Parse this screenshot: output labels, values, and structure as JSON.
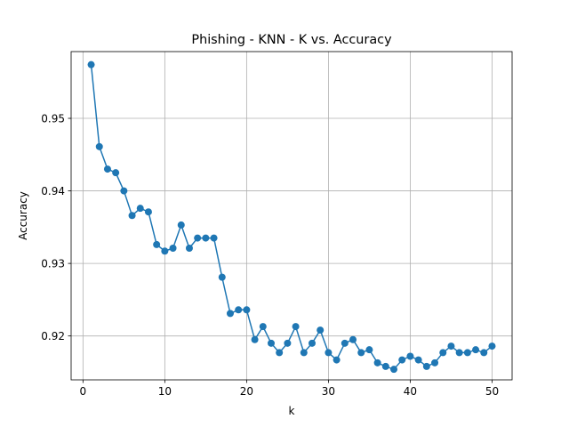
{
  "chart_data": {
    "type": "line",
    "title": "Phishing - KNN - K vs. Accuracy",
    "xlabel": "k",
    "ylabel": "Accuracy",
    "xlim": [
      -1.45,
      52.45
    ],
    "ylim": [
      0.91395,
      0.9592
    ],
    "xticks": [
      0,
      10,
      20,
      30,
      40,
      50
    ],
    "yticks": [
      0.92,
      0.93,
      0.94,
      0.95
    ],
    "xtick_labels": [
      "0",
      "10",
      "20",
      "30",
      "40",
      "50"
    ],
    "ytick_labels": [
      "0.92",
      "0.93",
      "0.94",
      "0.95"
    ],
    "grid": true,
    "marker": "circle",
    "series": [
      {
        "color": "#1f77b4",
        "x": [
          1,
          2,
          3,
          4,
          5,
          6,
          7,
          8,
          9,
          10,
          11,
          12,
          13,
          14,
          15,
          16,
          17,
          18,
          19,
          20,
          21,
          22,
          23,
          24,
          25,
          26,
          27,
          28,
          29,
          30,
          31,
          32,
          33,
          34,
          35,
          36,
          37,
          38,
          39,
          40,
          41,
          42,
          43,
          44,
          45,
          46,
          47,
          48,
          49,
          50
        ],
        "y": [
          0.9574,
          0.9461,
          0.943,
          0.9425,
          0.94,
          0.9366,
          0.9376,
          0.9371,
          0.9326,
          0.9317,
          0.9321,
          0.9353,
          0.9321,
          0.9335,
          0.9335,
          0.9335,
          0.9281,
          0.9231,
          0.9236,
          0.9236,
          0.9195,
          0.9213,
          0.919,
          0.9177,
          0.919,
          0.9213,
          0.9177,
          0.919,
          0.9208,
          0.9177,
          0.9167,
          0.919,
          0.9195,
          0.9177,
          0.9181,
          0.9163,
          0.9158,
          0.9154,
          0.9167,
          0.9172,
          0.9167,
          0.9158,
          0.9163,
          0.9177,
          0.9186,
          0.9177,
          0.9177,
          0.9181,
          0.9177,
          0.9186
        ]
      }
    ]
  }
}
